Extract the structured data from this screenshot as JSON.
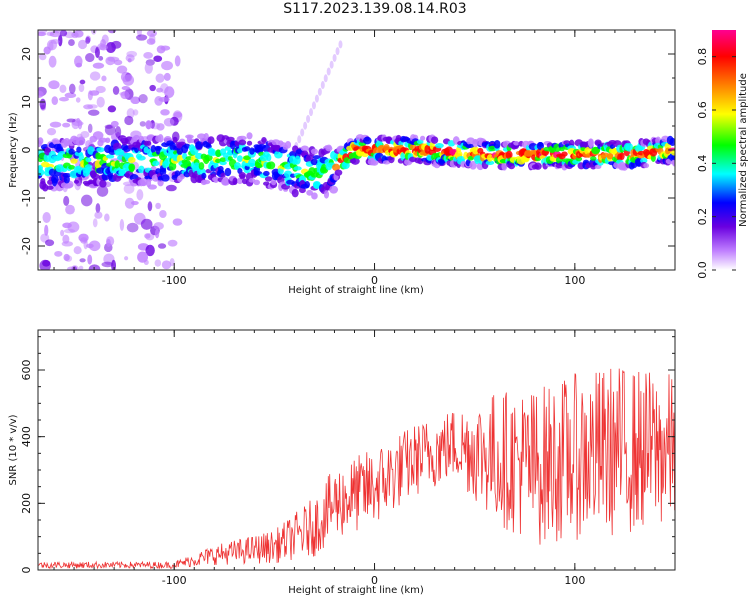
{
  "title": "S117.2023.139.08.14.R03",
  "chart_data": [
    {
      "type": "heatmap",
      "xlabel": "Height of straight line (km)",
      "ylabel": "Frequency (Hz)",
      "xlim": [
        -168,
        150
      ],
      "ylim": [
        -25,
        25
      ],
      "xticks": [
        -100,
        0,
        100
      ],
      "yticks": [
        -20,
        -10,
        0,
        10,
        20
      ],
      "colorbar": {
        "label": "Normalized spectral amplitude",
        "range": [
          0.0,
          0.9
        ],
        "ticks": [
          "0.0",
          "0.2",
          "0.4",
          "0.6",
          "0.8"
        ],
        "colors": [
          "#ffffff",
          "#c080ff",
          "#6a00e0",
          "#0000ff",
          "#00ffff",
          "#00ff00",
          "#ffff00",
          "#ff8000",
          "#ff0000",
          "#ff0090"
        ]
      },
      "ridge": [
        {
          "x": -165,
          "freq": -3
        },
        {
          "x": -110,
          "freq": -2
        },
        {
          "x": -60,
          "freq": -2
        },
        {
          "x": -40,
          "freq": -4
        },
        {
          "x": -25,
          "freq": -5
        },
        {
          "x": -10,
          "freq": 0
        },
        {
          "x": 20,
          "freq": 0
        },
        {
          "x": 60,
          "freq": -1
        },
        {
          "x": 100,
          "freq": -1
        },
        {
          "x": 130,
          "freq": -1
        },
        {
          "x": 148,
          "freq": 0
        }
      ]
    },
    {
      "type": "line",
      "xlabel": "Height of straight line (km)",
      "ylabel": "SNR (10 * v/v)",
      "xlim": [
        -168,
        150
      ],
      "ylim": [
        0,
        720
      ],
      "xticks": [
        -100,
        0,
        100
      ],
      "yticks": [
        0,
        200,
        400,
        600
      ],
      "color": "#ee3333",
      "trend": [
        {
          "x": -168,
          "mean": 15,
          "amp": 10
        },
        {
          "x": -100,
          "mean": 15,
          "amp": 10
        },
        {
          "x": -80,
          "mean": 45,
          "amp": 30
        },
        {
          "x": -50,
          "mean": 70,
          "amp": 50
        },
        {
          "x": -30,
          "mean": 130,
          "amp": 90
        },
        {
          "x": -20,
          "mean": 200,
          "amp": 110
        },
        {
          "x": 0,
          "mean": 250,
          "amp": 120
        },
        {
          "x": 20,
          "mean": 330,
          "amp": 110
        },
        {
          "x": 40,
          "mean": 380,
          "amp": 110
        },
        {
          "x": 60,
          "mean": 340,
          "amp": 200
        },
        {
          "x": 80,
          "mean": 310,
          "amp": 240
        },
        {
          "x": 100,
          "mean": 340,
          "amp": 250
        },
        {
          "x": 120,
          "mean": 360,
          "amp": 260
        },
        {
          "x": 150,
          "mean": 360,
          "amp": 230
        }
      ]
    }
  ]
}
